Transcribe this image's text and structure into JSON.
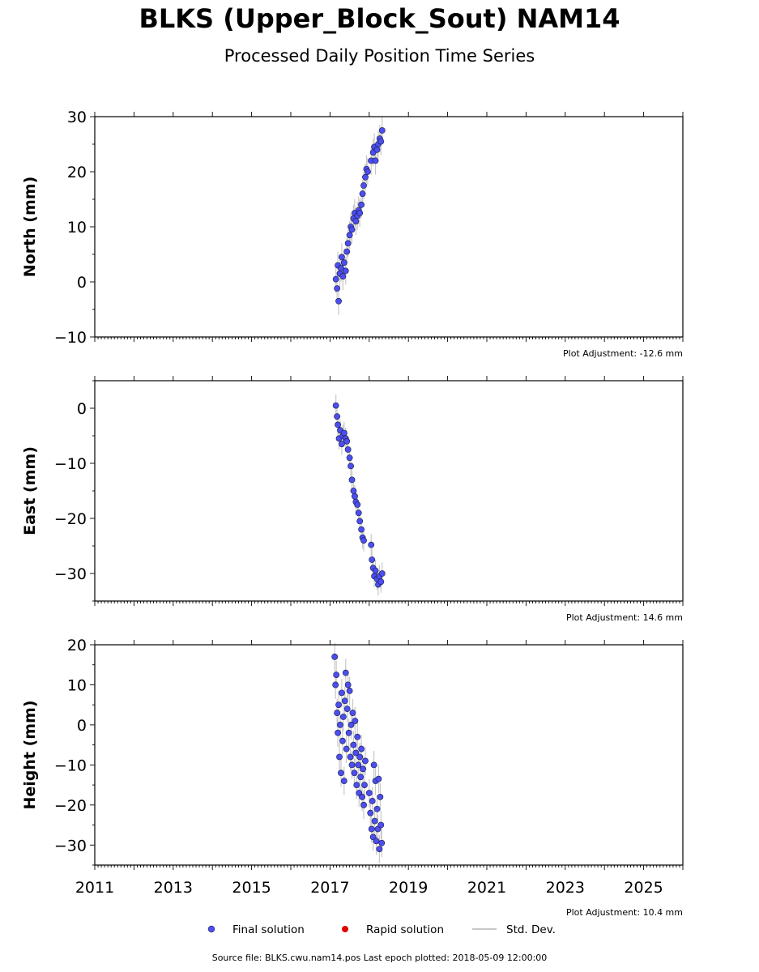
{
  "title": "BLKS (Upper_Block_Sout) NAM14",
  "subtitle": "Processed Daily Position Time Series",
  "legend": {
    "final_label": "Final solution",
    "rapid_label": "Rapid solution",
    "stddev_label": "Std. Dev.",
    "final_color": "#4b4ef0",
    "rapid_color": "#e00000",
    "stddev_color": "#c8c8c8"
  },
  "footer": "Source file: BLKS.cwu.nam14.pos  Last epoch plotted: 2018-05-09 12:00:00",
  "chart_data": [
    {
      "type": "scatter",
      "ylabel": "North (mm)",
      "ylim": [
        -10,
        30
      ],
      "yticks": [
        -10,
        0,
        10,
        20,
        30
      ],
      "xlim": [
        2011,
        2026
      ],
      "adjustment": "Plot Adjustment: -12.6 mm",
      "series": [
        {
          "points": [
            [
              2017.15,
              0.5
            ],
            [
              2017.18,
              -1.2
            ],
            [
              2017.2,
              3.0
            ],
            [
              2017.22,
              -3.5
            ],
            [
              2017.25,
              1.5
            ],
            [
              2017.28,
              2.5
            ],
            [
              2017.3,
              4.5
            ],
            [
              2017.33,
              1.0
            ],
            [
              2017.36,
              3.5
            ],
            [
              2017.4,
              2.0
            ],
            [
              2017.43,
              5.5
            ],
            [
              2017.46,
              7.0
            ],
            [
              2017.5,
              8.5
            ],
            [
              2017.53,
              10.0
            ],
            [
              2017.56,
              9.5
            ],
            [
              2017.6,
              11.5
            ],
            [
              2017.63,
              12.5
            ],
            [
              2017.66,
              11.0
            ],
            [
              2017.7,
              12.0
            ],
            [
              2017.73,
              13.0
            ],
            [
              2017.76,
              12.5
            ],
            [
              2017.8,
              14.0
            ],
            [
              2017.83,
              16.0
            ],
            [
              2017.86,
              17.5
            ],
            [
              2017.9,
              19.0
            ],
            [
              2017.93,
              20.5
            ],
            [
              2017.96,
              20.0
            ],
            [
              2018.05,
              22.0
            ],
            [
              2018.1,
              23.5
            ],
            [
              2018.13,
              24.5
            ],
            [
              2018.16,
              22.0
            ],
            [
              2018.2,
              24.0
            ],
            [
              2018.23,
              25.0
            ],
            [
              2018.27,
              26.0
            ],
            [
              2018.3,
              25.5
            ],
            [
              2018.33,
              27.5
            ]
          ],
          "stddev": 2.5
        }
      ]
    },
    {
      "type": "scatter",
      "ylabel": "East (mm)",
      "ylim": [
        -35,
        5
      ],
      "yticks": [
        -30,
        -20,
        -10,
        0
      ],
      "xlim": [
        2011,
        2026
      ],
      "adjustment": "Plot Adjustment: 14.6 mm",
      "series": [
        {
          "points": [
            [
              2017.15,
              0.5
            ],
            [
              2017.18,
              -1.5
            ],
            [
              2017.2,
              -3.0
            ],
            [
              2017.23,
              -5.5
            ],
            [
              2017.26,
              -4.0
            ],
            [
              2017.3,
              -6.5
            ],
            [
              2017.33,
              -5.0
            ],
            [
              2017.36,
              -4.5
            ],
            [
              2017.4,
              -5.5
            ],
            [
              2017.43,
              -6.0
            ],
            [
              2017.46,
              -7.5
            ],
            [
              2017.5,
              -9.0
            ],
            [
              2017.53,
              -10.5
            ],
            [
              2017.56,
              -13.0
            ],
            [
              2017.6,
              -15.0
            ],
            [
              2017.63,
              -16.0
            ],
            [
              2017.66,
              -17.0
            ],
            [
              2017.7,
              -17.5
            ],
            [
              2017.73,
              -19.0
            ],
            [
              2017.76,
              -20.5
            ],
            [
              2017.8,
              -22.0
            ],
            [
              2017.83,
              -23.5
            ],
            [
              2017.86,
              -24.0
            ],
            [
              2018.05,
              -24.8
            ],
            [
              2018.07,
              -27.5
            ],
            [
              2018.1,
              -29.0
            ],
            [
              2018.13,
              -30.5
            ],
            [
              2018.16,
              -29.5
            ],
            [
              2018.2,
              -31.0
            ],
            [
              2018.23,
              -32.0
            ],
            [
              2018.26,
              -30.5
            ],
            [
              2018.3,
              -31.5
            ],
            [
              2018.33,
              -30.0
            ]
          ],
          "stddev": 2.0
        }
      ]
    },
    {
      "type": "scatter",
      "ylabel": "Height (mm)",
      "ylim": [
        -35,
        20
      ],
      "yticks": [
        -30,
        -20,
        -10,
        0,
        10,
        20
      ],
      "xlim": [
        2011,
        2026
      ],
      "xticks": [
        2011,
        2013,
        2015,
        2017,
        2019,
        2021,
        2023,
        2025
      ],
      "adjustment": "Plot Adjustment: 10.4 mm",
      "series": [
        {
          "points": [
            [
              2017.12,
              17.0
            ],
            [
              2017.14,
              10.0
            ],
            [
              2017.16,
              12.5
            ],
            [
              2017.18,
              3.0
            ],
            [
              2017.2,
              -2.0
            ],
            [
              2017.22,
              5.0
            ],
            [
              2017.24,
              -8.0
            ],
            [
              2017.26,
              0.0
            ],
            [
              2017.28,
              -12.0
            ],
            [
              2017.3,
              8.0
            ],
            [
              2017.32,
              -4.0
            ],
            [
              2017.34,
              2.0
            ],
            [
              2017.36,
              -14.0
            ],
            [
              2017.38,
              6.0
            ],
            [
              2017.4,
              13.0
            ],
            [
              2017.42,
              -6.0
            ],
            [
              2017.44,
              4.0
            ],
            [
              2017.46,
              10.0
            ],
            [
              2017.48,
              -2.0
            ],
            [
              2017.5,
              8.5
            ],
            [
              2017.52,
              -8.0
            ],
            [
              2017.54,
              0.0
            ],
            [
              2017.56,
              -10.0
            ],
            [
              2017.58,
              3.0
            ],
            [
              2017.6,
              -5.0
            ],
            [
              2017.62,
              -12.0
            ],
            [
              2017.64,
              1.0
            ],
            [
              2017.66,
              -7.0
            ],
            [
              2017.68,
              -15.0
            ],
            [
              2017.7,
              -3.0
            ],
            [
              2017.72,
              -10.0
            ],
            [
              2017.74,
              -17.0
            ],
            [
              2017.76,
              -8.0
            ],
            [
              2017.78,
              -13.0
            ],
            [
              2017.8,
              -6.0
            ],
            [
              2017.82,
              -18.0
            ],
            [
              2017.84,
              -11.0
            ],
            [
              2017.86,
              -20.0
            ],
            [
              2017.88,
              -15.0
            ],
            [
              2017.9,
              -9.0
            ],
            [
              2018.0,
              -17.0
            ],
            [
              2018.03,
              -22.0
            ],
            [
              2018.06,
              -26.0
            ],
            [
              2018.08,
              -19.0
            ],
            [
              2018.1,
              -28.0
            ],
            [
              2018.12,
              -10.0
            ],
            [
              2018.14,
              -24.0
            ],
            [
              2018.16,
              -14.0
            ],
            [
              2018.18,
              -29.0
            ],
            [
              2018.2,
              -21.0
            ],
            [
              2018.22,
              -26.0
            ],
            [
              2018.24,
              -13.5
            ],
            [
              2018.26,
              -31.0
            ],
            [
              2018.28,
              -18.0
            ],
            [
              2018.3,
              -25.0
            ],
            [
              2018.32,
              -29.5
            ]
          ],
          "stddev": 3.5
        }
      ]
    }
  ]
}
